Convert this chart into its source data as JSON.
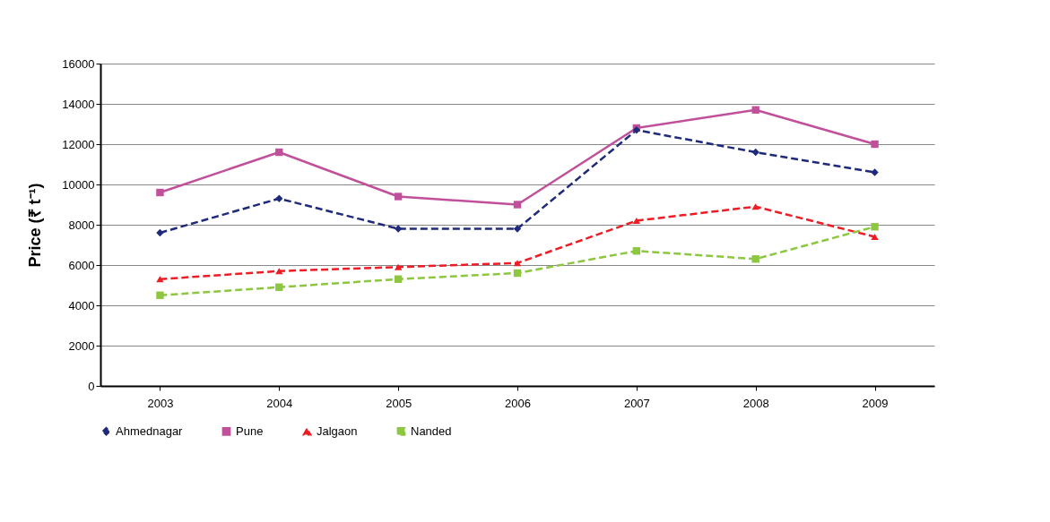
{
  "chart_data": {
    "type": "line",
    "ylabel": "Price (₹ t⁻¹)",
    "categories": [
      "2003",
      "2004",
      "2005",
      "2006",
      "2007",
      "2008",
      "2009"
    ],
    "ylim": [
      0,
      16000
    ],
    "yticks": [
      0,
      2000,
      4000,
      6000,
      8000,
      10000,
      12000,
      14000,
      16000
    ],
    "grid": "y",
    "legend": "bottom",
    "series": [
      {
        "name": "Ahmednagar",
        "color": "#1f2a7a",
        "marker": "diamond",
        "line_style": "dashed",
        "values": [
          7600,
          9300,
          7800,
          7800,
          12700,
          11600,
          10600
        ]
      },
      {
        "name": "Pune",
        "color": "#c0509a",
        "marker": "square",
        "line_style": "solid",
        "values": [
          9600,
          11600,
          9400,
          9000,
          12800,
          13700,
          12000
        ]
      },
      {
        "name": "Jalgaon",
        "color": "#ee1c24",
        "marker": "triangle",
        "line_style": "dashed",
        "values": [
          5300,
          5700,
          5900,
          6100,
          8200,
          8900,
          7400
        ]
      },
      {
        "name": "Nanded",
        "color": "#8dc63f",
        "marker": "square",
        "line_style": "dashed",
        "values": [
          4500,
          4900,
          5300,
          5600,
          6700,
          6300,
          7900
        ]
      }
    ]
  }
}
